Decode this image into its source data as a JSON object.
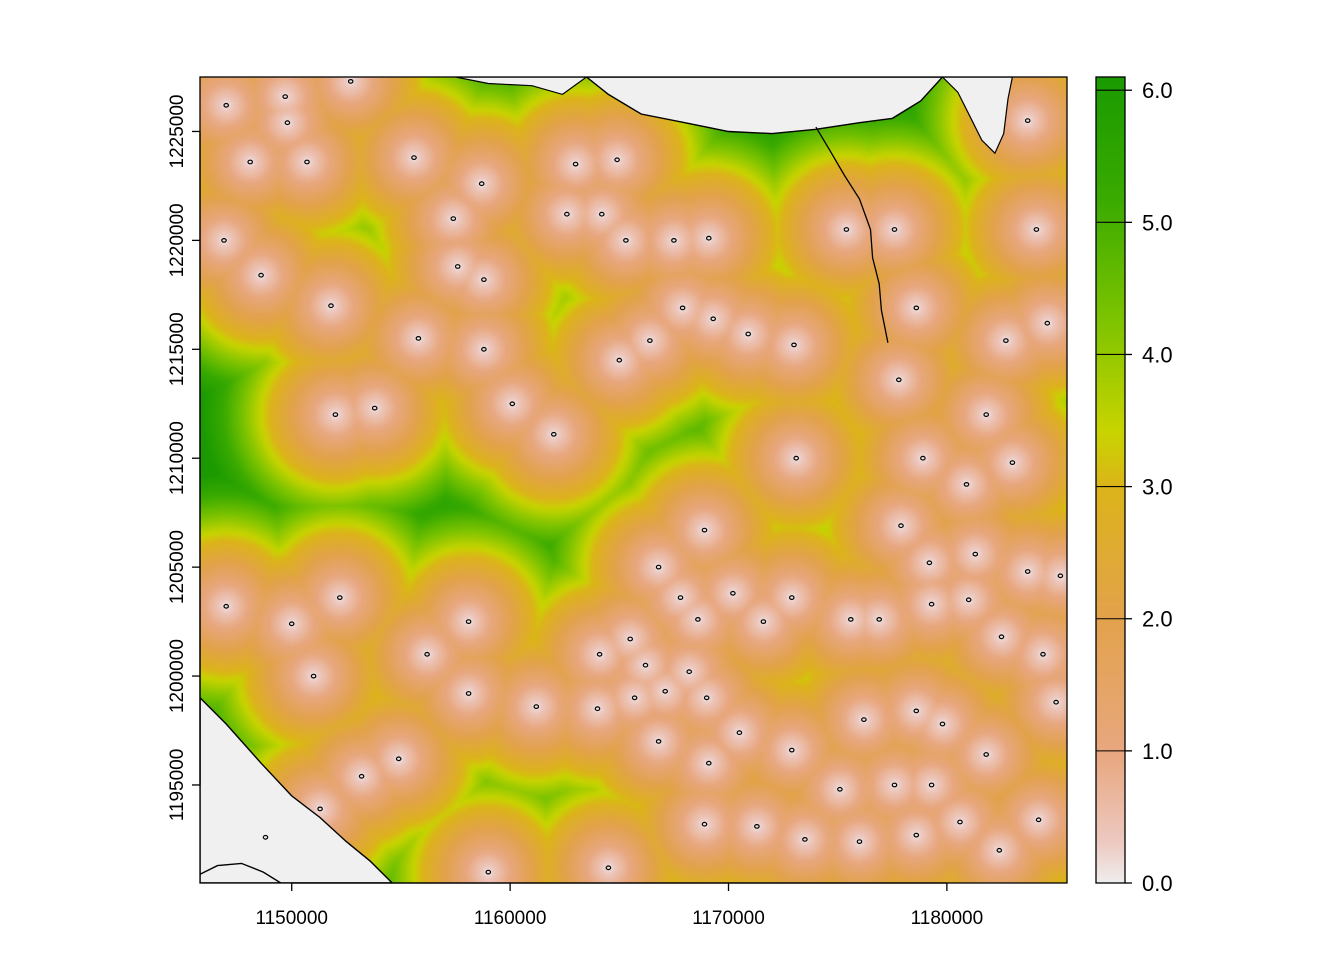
{
  "chart_data": {
    "type": "heatmap",
    "title": "",
    "xlabel": "",
    "ylabel": "",
    "xlim": [
      1145800,
      1185500
    ],
    "ylim": [
      1190500,
      1227500
    ],
    "x_ticks": [
      1150000,
      1160000,
      1170000,
      1180000
    ],
    "x_tick_labels": [
      "1150000",
      "1160000",
      "1170000",
      "1180000"
    ],
    "y_ticks": [
      1195000,
      1200000,
      1205000,
      1210000,
      1215000,
      1220000,
      1225000
    ],
    "y_tick_labels": [
      "1195000",
      "1200000",
      "1205000",
      "1210000",
      "1215000",
      "1220000",
      "1225000"
    ],
    "legend": {
      "placement": "right",
      "min": 0.0,
      "max": 6.1,
      "ticks": [
        0.0,
        1.0,
        2.0,
        3.0,
        4.0,
        5.0,
        6.0
      ],
      "tick_labels": [
        "0.0",
        "1.0",
        "2.0",
        "3.0",
        "4.0",
        "5.0",
        "6.0"
      ]
    },
    "colors": {
      "zero": "#eeeeee",
      "low": "#e8a77f",
      "mid": "#dcb31a",
      "high": "#1a9a00",
      "water": "#f0f0f0",
      "outline": "#000000"
    },
    "grid": false,
    "description_points": [
      {
        "x": 1146500,
        "y": 1210500,
        "value": 5.6
      },
      {
        "x": 1153200,
        "y": 1220000,
        "value": 4.2
      },
      {
        "x": 1158500,
        "y": 1207500,
        "value": 4.5
      },
      {
        "x": 1162000,
        "y": 1206000,
        "value": 5.0
      },
      {
        "x": 1161200,
        "y": 1194800,
        "value": 4.6
      },
      {
        "x": 1161500,
        "y": 1216200,
        "value": 3.2
      },
      {
        "x": 1180500,
        "y": 1222500,
        "value": 3.0
      }
    ],
    "point_sources": [
      [
        1147.0,
        1226.2
      ],
      [
        1149.7,
        1226.6
      ],
      [
        1149.8,
        1225.4
      ],
      [
        1152.7,
        1227.3
      ],
      [
        1148.1,
        1223.6
      ],
      [
        1150.7,
        1223.6
      ],
      [
        1155.6,
        1223.8
      ],
      [
        1158.7,
        1222.6
      ],
      [
        1157.4,
        1221.0
      ],
      [
        1163.0,
        1223.5
      ],
      [
        1162.6,
        1221.2
      ],
      [
        1164.2,
        1221.2
      ],
      [
        1164.9,
        1223.7
      ],
      [
        1165.3,
        1220.0
      ],
      [
        1167.5,
        1220.0
      ],
      [
        1169.1,
        1220.1
      ],
      [
        1146.9,
        1220.0
      ],
      [
        1148.6,
        1218.4
      ],
      [
        1157.6,
        1218.8
      ],
      [
        1158.8,
        1218.2
      ],
      [
        1151.8,
        1217.0
      ],
      [
        1155.8,
        1215.5
      ],
      [
        1158.8,
        1215.0
      ],
      [
        1160.1,
        1212.5
      ],
      [
        1162.0,
        1211.1
      ],
      [
        1153.8,
        1212.3
      ],
      [
        1152.0,
        1212.0
      ],
      [
        1165.0,
        1214.5
      ],
      [
        1166.4,
        1215.4
      ],
      [
        1167.9,
        1216.9
      ],
      [
        1169.3,
        1216.4
      ],
      [
        1170.9,
        1215.7
      ],
      [
        1173.0,
        1215.2
      ],
      [
        1173.1,
        1210.0
      ],
      [
        1178.6,
        1216.9
      ],
      [
        1177.8,
        1213.6
      ],
      [
        1178.9,
        1210.0
      ],
      [
        1181.8,
        1212.0
      ],
      [
        1183.0,
        1209.8
      ],
      [
        1180.9,
        1208.8
      ],
      [
        1182.7,
        1215.4
      ],
      [
        1184.6,
        1216.2
      ],
      [
        1184.1,
        1220.5
      ],
      [
        1183.7,
        1225.5
      ],
      [
        1175.4,
        1220.5
      ],
      [
        1177.6,
        1220.5
      ],
      [
        1168.9,
        1206.7
      ],
      [
        1166.8,
        1205.0
      ],
      [
        1167.8,
        1203.6
      ],
      [
        1170.2,
        1203.8
      ],
      [
        1172.9,
        1203.6
      ],
      [
        1176.9,
        1202.6
      ],
      [
        1175.6,
        1202.6
      ],
      [
        1168.6,
        1202.6
      ],
      [
        1171.6,
        1202.5
      ],
      [
        1165.5,
        1201.7
      ],
      [
        1164.1,
        1201.0
      ],
      [
        1166.2,
        1200.5
      ],
      [
        1168.2,
        1200.2
      ],
      [
        1169.0,
        1199.0
      ],
      [
        1167.1,
        1199.3
      ],
      [
        1165.7,
        1199.0
      ],
      [
        1164.0,
        1198.5
      ],
      [
        1161.2,
        1198.6
      ],
      [
        1158.1,
        1199.2
      ],
      [
        1156.2,
        1201.0
      ],
      [
        1158.1,
        1202.5
      ],
      [
        1152.2,
        1203.6
      ],
      [
        1150.0,
        1202.4
      ],
      [
        1147.0,
        1203.2
      ],
      [
        1151.0,
        1200.0
      ],
      [
        1154.9,
        1196.2
      ],
      [
        1153.2,
        1195.4
      ],
      [
        1151.3,
        1193.9
      ],
      [
        1148.8,
        1192.6
      ],
      [
        1159.0,
        1191.0
      ],
      [
        1164.5,
        1191.2
      ],
      [
        1166.8,
        1197.0
      ],
      [
        1169.1,
        1196.0
      ],
      [
        1170.5,
        1197.4
      ],
      [
        1172.9,
        1196.6
      ],
      [
        1175.1,
        1194.8
      ],
      [
        1177.6,
        1195.0
      ],
      [
        1179.3,
        1195.0
      ],
      [
        1178.6,
        1192.7
      ],
      [
        1180.6,
        1193.3
      ],
      [
        1182.4,
        1192.0
      ],
      [
        1184.2,
        1193.4
      ],
      [
        1176.0,
        1192.4
      ],
      [
        1173.5,
        1192.5
      ],
      [
        1171.3,
        1193.1
      ],
      [
        1168.9,
        1193.2
      ],
      [
        1176.2,
        1198.0
      ],
      [
        1178.6,
        1198.4
      ],
      [
        1179.8,
        1197.8
      ],
      [
        1179.3,
        1203.3
      ],
      [
        1181.0,
        1203.5
      ],
      [
        1182.5,
        1201.8
      ],
      [
        1184.4,
        1201.0
      ],
      [
        1185.0,
        1198.8
      ],
      [
        1181.8,
        1196.4
      ],
      [
        1177.9,
        1206.9
      ],
      [
        1179.2,
        1205.2
      ],
      [
        1181.3,
        1205.6
      ],
      [
        1183.7,
        1204.8
      ],
      [
        1185.2,
        1204.6
      ]
    ],
    "water_bodies": [
      [
        [
          1163.5,
          1227.5
        ],
        [
          1164.5,
          1226.7
        ],
        [
          1166.0,
          1225.8
        ],
        [
          1168.0,
          1225.4
        ],
        [
          1170.0,
          1225.0
        ],
        [
          1172.0,
          1224.9
        ],
        [
          1174.0,
          1225.1
        ],
        [
          1176.0,
          1225.4
        ],
        [
          1177.5,
          1225.6
        ],
        [
          1178.8,
          1226.4
        ],
        [
          1179.8,
          1227.5
        ]
      ],
      [
        [
          1145.8,
          1199.0
        ],
        [
          1147.0,
          1197.8
        ],
        [
          1148.6,
          1196.0
        ],
        [
          1150.0,
          1194.5
        ],
        [
          1151.3,
          1193.5
        ],
        [
          1152.5,
          1192.4
        ],
        [
          1153.6,
          1191.5
        ],
        [
          1154.6,
          1190.5
        ],
        [
          1145.8,
          1190.5
        ]
      ],
      [
        [
          1145.8,
          1190.9
        ],
        [
          1146.6,
          1191.3
        ],
        [
          1147.7,
          1191.4
        ],
        [
          1148.7,
          1191.0
        ],
        [
          1149.5,
          1190.5
        ],
        [
          1145.8,
          1190.5
        ]
      ]
    ],
    "water_fill": [
      [
        [
          1157.5,
          1227.5
        ],
        [
          1159.0,
          1227.2
        ],
        [
          1161.0,
          1227.1
        ],
        [
          1162.4,
          1226.7
        ],
        [
          1163.5,
          1227.5
        ]
      ],
      [
        [
          1179.8,
          1227.5
        ],
        [
          1180.5,
          1226.8
        ],
        [
          1181.2,
          1225.4
        ],
        [
          1181.6,
          1224.6
        ],
        [
          1182.2,
          1224.0
        ],
        [
          1182.6,
          1224.9
        ],
        [
          1182.8,
          1226.5
        ],
        [
          1183.0,
          1227.5
        ]
      ]
    ]
  }
}
